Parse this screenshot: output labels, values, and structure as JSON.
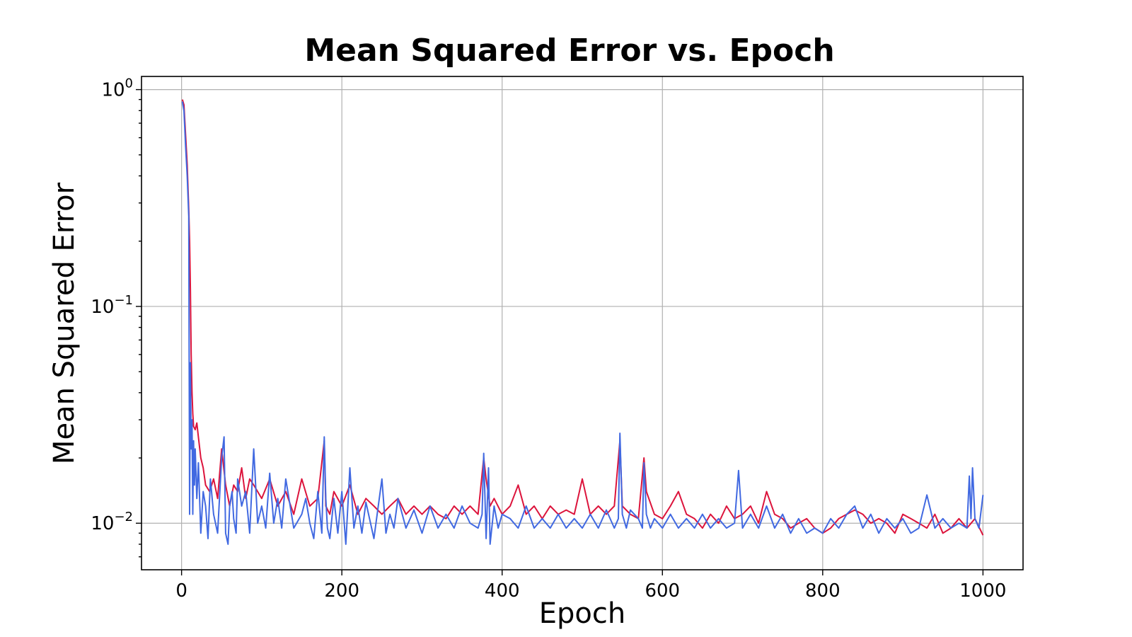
{
  "chart_data": {
    "type": "line",
    "title": "Mean Squared Error vs. Epoch",
    "xlabel": "Epoch",
    "ylabel": "Mean Squared Error",
    "xlim": [
      -50,
      1050
    ],
    "ylim": [
      0.0061,
      1.15
    ],
    "y_scale": "log",
    "grid": true,
    "x_ticks": [
      {
        "value": 0,
        "label": "0"
      },
      {
        "value": 200,
        "label": "200"
      },
      {
        "value": 400,
        "label": "400"
      },
      {
        "value": 600,
        "label": "600"
      },
      {
        "value": 800,
        "label": "800"
      },
      {
        "value": 1000,
        "label": "1000"
      }
    ],
    "y_ticks": [
      {
        "value": 1,
        "base": "10",
        "exp": "0"
      },
      {
        "value": 0.1,
        "base": "10",
        "exp": "−1"
      },
      {
        "value": 0.01,
        "base": "10",
        "exp": "−2"
      }
    ],
    "series": [
      {
        "color": "#dc143c",
        "x": [
          1,
          3,
          5,
          7,
          9,
          10,
          11,
          12,
          13,
          14,
          15,
          17,
          19,
          21,
          24,
          27,
          30,
          35,
          40,
          45,
          50,
          55,
          60,
          65,
          70,
          75,
          80,
          85,
          90,
          100,
          110,
          120,
          130,
          140,
          150,
          160,
          170,
          178,
          180,
          185,
          190,
          200,
          210,
          220,
          230,
          240,
          250,
          260,
          270,
          280,
          290,
          300,
          310,
          320,
          330,
          340,
          350,
          360,
          370,
          377,
          380,
          385,
          390,
          400,
          410,
          420,
          430,
          440,
          450,
          460,
          470,
          480,
          490,
          500,
          510,
          520,
          530,
          540,
          547,
          550,
          560,
          570,
          577,
          580,
          590,
          600,
          610,
          620,
          630,
          640,
          650,
          660,
          670,
          680,
          690,
          700,
          710,
          720,
          730,
          740,
          750,
          760,
          770,
          780,
          790,
          800,
          810,
          820,
          830,
          840,
          850,
          860,
          870,
          880,
          890,
          900,
          910,
          920,
          930,
          940,
          950,
          960,
          970,
          980,
          990,
          1000
        ],
        "y": [
          0.9,
          0.85,
          0.62,
          0.45,
          0.28,
          0.2,
          0.12,
          0.06,
          0.04,
          0.032,
          0.028,
          0.027,
          0.029,
          0.025,
          0.02,
          0.018,
          0.015,
          0.014,
          0.016,
          0.013,
          0.022,
          0.015,
          0.012,
          0.015,
          0.014,
          0.018,
          0.013,
          0.016,
          0.015,
          0.013,
          0.016,
          0.012,
          0.014,
          0.011,
          0.016,
          0.012,
          0.013,
          0.024,
          0.012,
          0.011,
          0.014,
          0.012,
          0.015,
          0.011,
          0.013,
          0.012,
          0.011,
          0.012,
          0.013,
          0.011,
          0.012,
          0.011,
          0.012,
          0.011,
          0.0105,
          0.012,
          0.011,
          0.012,
          0.011,
          0.02,
          0.016,
          0.012,
          0.013,
          0.011,
          0.012,
          0.015,
          0.011,
          0.012,
          0.0105,
          0.012,
          0.011,
          0.0115,
          0.011,
          0.016,
          0.011,
          0.012,
          0.011,
          0.012,
          0.024,
          0.012,
          0.011,
          0.0105,
          0.02,
          0.014,
          0.011,
          0.0105,
          0.012,
          0.014,
          0.011,
          0.0105,
          0.0095,
          0.011,
          0.01,
          0.012,
          0.0105,
          0.011,
          0.012,
          0.01,
          0.014,
          0.011,
          0.0105,
          0.0095,
          0.01,
          0.0105,
          0.0095,
          0.009,
          0.0095,
          0.0105,
          0.011,
          0.0115,
          0.011,
          0.01,
          0.0105,
          0.01,
          0.009,
          0.011,
          0.0105,
          0.01,
          0.0095,
          0.011,
          0.009,
          0.0095,
          0.0105,
          0.0095,
          0.0105,
          0.0088
        ]
      },
      {
        "color": "#4169e1",
        "x": [
          1,
          3,
          5,
          7,
          9,
          10,
          11,
          12,
          13,
          14,
          15,
          16,
          17,
          19,
          21,
          24,
          27,
          30,
          33,
          36,
          40,
          45,
          50,
          53,
          55,
          58,
          60,
          63,
          65,
          68,
          70,
          75,
          80,
          85,
          90,
          95,
          100,
          105,
          110,
          115,
          120,
          125,
          130,
          140,
          150,
          155,
          160,
          165,
          170,
          175,
          178,
          180,
          182,
          185,
          190,
          195,
          200,
          205,
          210,
          215,
          220,
          225,
          230,
          240,
          250,
          255,
          260,
          265,
          270,
          280,
          290,
          300,
          310,
          320,
          330,
          340,
          350,
          360,
          370,
          375,
          377,
          380,
          383,
          385,
          390,
          395,
          400,
          410,
          420,
          430,
          440,
          450,
          460,
          470,
          480,
          490,
          500,
          510,
          520,
          530,
          540,
          545,
          547,
          550,
          555,
          560,
          570,
          575,
          577,
          580,
          585,
          590,
          600,
          610,
          620,
          630,
          640,
          650,
          660,
          670,
          680,
          690,
          695,
          700,
          710,
          720,
          730,
          740,
          750,
          760,
          770,
          780,
          790,
          800,
          810,
          820,
          830,
          840,
          850,
          860,
          870,
          880,
          890,
          900,
          910,
          920,
          930,
          940,
          950,
          960,
          970,
          980,
          983,
          985,
          987,
          990,
          995,
          1000
        ],
        "y": [
          0.88,
          0.8,
          0.55,
          0.4,
          0.26,
          0.011,
          0.055,
          0.022,
          0.03,
          0.011,
          0.024,
          0.015,
          0.022,
          0.013,
          0.019,
          0.009,
          0.014,
          0.012,
          0.0085,
          0.016,
          0.011,
          0.009,
          0.02,
          0.025,
          0.009,
          0.008,
          0.012,
          0.014,
          0.0105,
          0.009,
          0.016,
          0.012,
          0.014,
          0.009,
          0.022,
          0.01,
          0.012,
          0.0095,
          0.017,
          0.01,
          0.013,
          0.0095,
          0.016,
          0.0095,
          0.011,
          0.013,
          0.01,
          0.0085,
          0.014,
          0.009,
          0.025,
          0.013,
          0.0095,
          0.0085,
          0.013,
          0.009,
          0.014,
          0.008,
          0.018,
          0.0095,
          0.012,
          0.009,
          0.0125,
          0.0085,
          0.016,
          0.009,
          0.011,
          0.0095,
          0.013,
          0.0095,
          0.0115,
          0.009,
          0.012,
          0.0095,
          0.011,
          0.0095,
          0.012,
          0.01,
          0.0095,
          0.011,
          0.021,
          0.0085,
          0.018,
          0.008,
          0.012,
          0.0095,
          0.011,
          0.0105,
          0.0095,
          0.012,
          0.0095,
          0.0105,
          0.0095,
          0.011,
          0.0095,
          0.0105,
          0.0095,
          0.011,
          0.0095,
          0.0115,
          0.0095,
          0.0105,
          0.026,
          0.011,
          0.0095,
          0.0115,
          0.0105,
          0.0095,
          0.019,
          0.011,
          0.0095,
          0.0105,
          0.0095,
          0.011,
          0.0095,
          0.0105,
          0.0095,
          0.011,
          0.0095,
          0.0105,
          0.0095,
          0.01,
          0.0175,
          0.0095,
          0.011,
          0.0095,
          0.012,
          0.0095,
          0.011,
          0.009,
          0.0105,
          0.009,
          0.0095,
          0.009,
          0.0105,
          0.0095,
          0.011,
          0.012,
          0.0095,
          0.011,
          0.009,
          0.0105,
          0.0095,
          0.0105,
          0.009,
          0.0095,
          0.0135,
          0.0095,
          0.0105,
          0.0095,
          0.01,
          0.0095,
          0.0165,
          0.0105,
          0.018,
          0.0105,
          0.0095,
          0.0135
        ]
      }
    ]
  }
}
